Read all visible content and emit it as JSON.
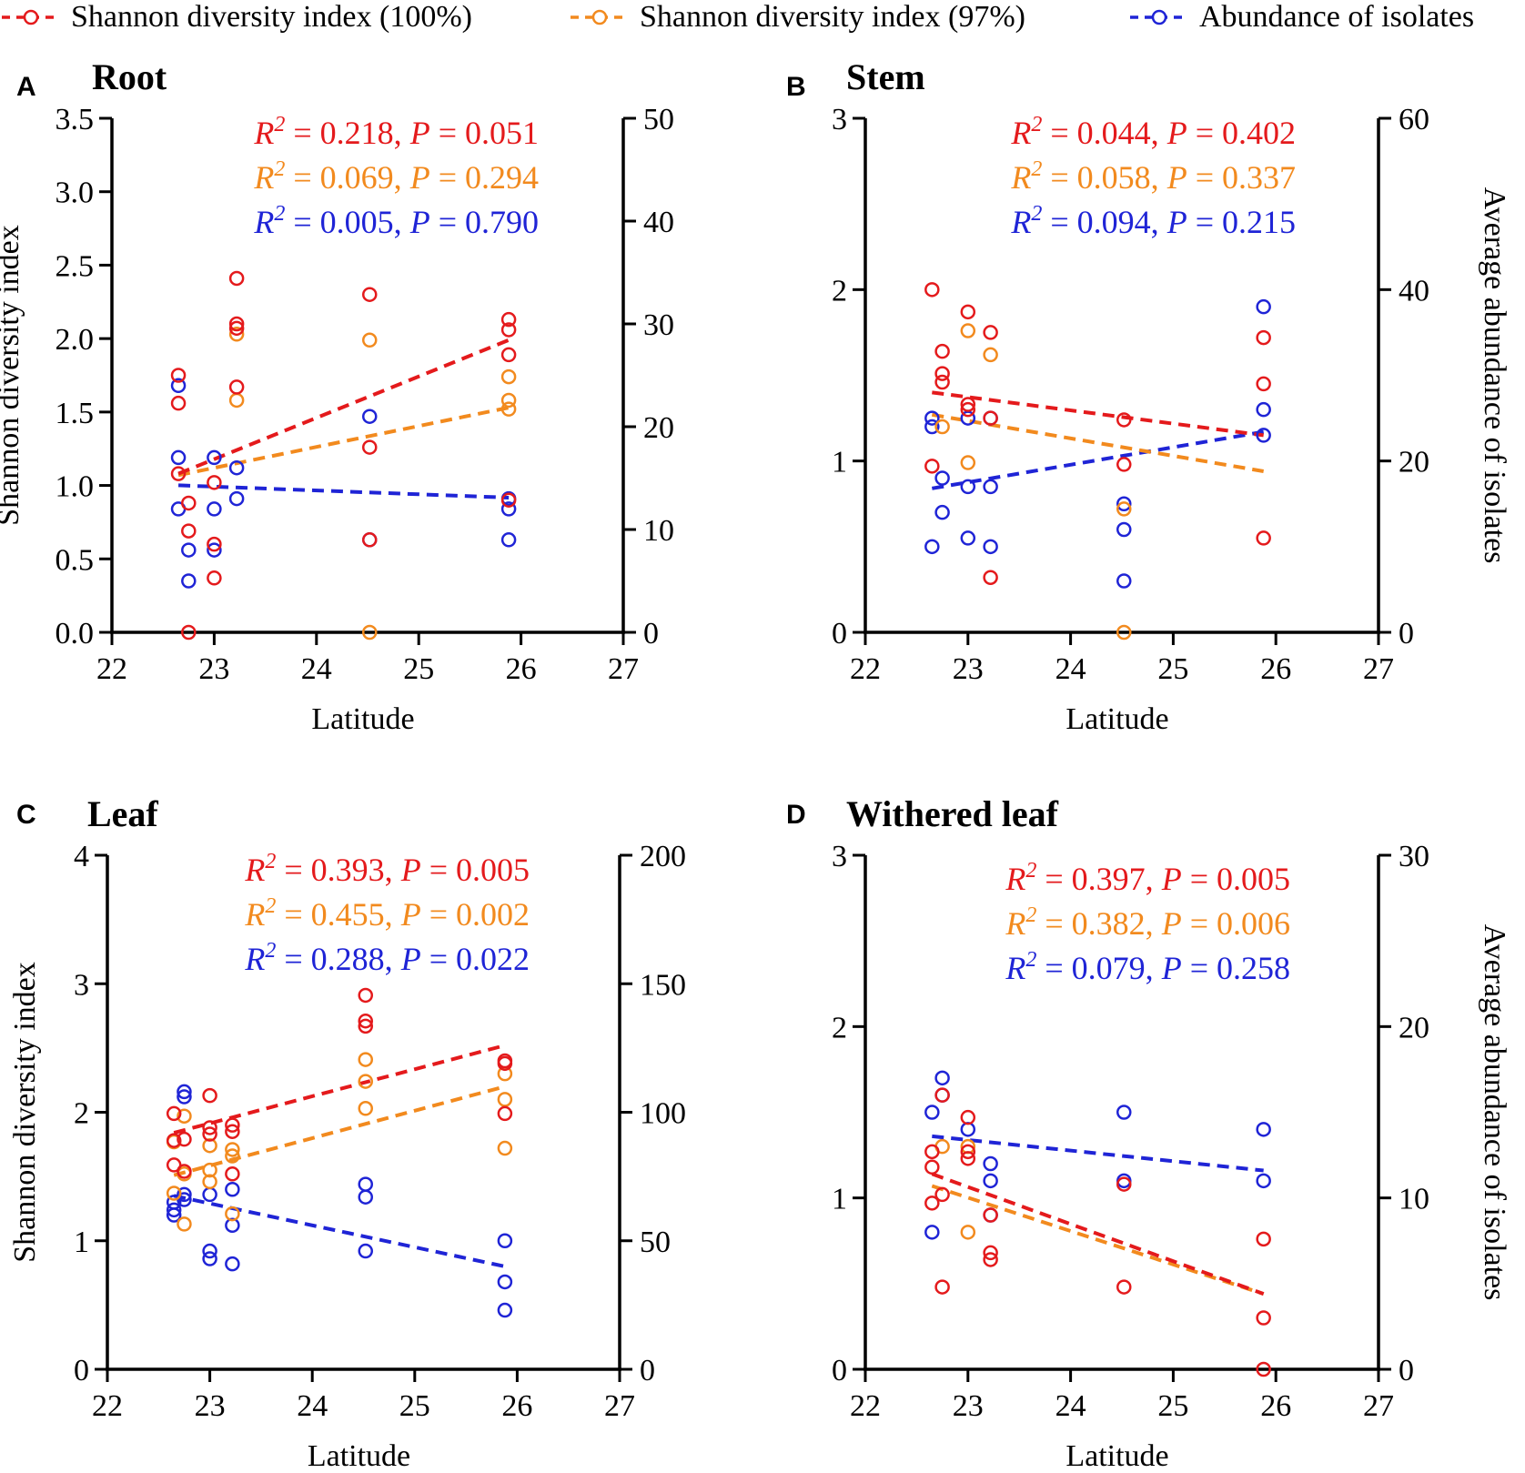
{
  "legend": {
    "items": [
      {
        "label": "Shannon diversity index (100%)",
        "color": "#e41a1c"
      },
      {
        "label": "Shannon diversity index (97%)",
        "color": "#f28a1e"
      },
      {
        "label": "Abundance of isolates",
        "color": "#1f24d6"
      }
    ]
  },
  "colors": {
    "red": "#e41a1c",
    "orange": "#f28a1e",
    "blue": "#1f24d6"
  },
  "chart_data": [
    {
      "panel": "A",
      "type": "scatter",
      "title": "Root",
      "xlabel": "Latitude",
      "ylabel": "Shannon diversity index",
      "y2label": "",
      "xlim": [
        22,
        27
      ],
      "xticks": [
        "22",
        "23",
        "24",
        "25",
        "26",
        "27"
      ],
      "ylim": [
        0,
        3.5
      ],
      "yticks": [
        "0.0",
        "0.5",
        "1.0",
        "1.5",
        "2.0",
        "2.5",
        "3.0",
        "3.5"
      ],
      "y2lim": [
        0,
        50
      ],
      "y2ticks": [
        "0",
        "10",
        "20",
        "30",
        "40",
        "50"
      ],
      "stats": [
        {
          "r2": "0.218",
          "p": "0.051",
          "color": "#e41a1c"
        },
        {
          "r2": "0.069",
          "p": "0.294",
          "color": "#f28a1e"
        },
        {
          "r2": "0.005",
          "p": "0.790",
          "color": "#1f24d6"
        }
      ],
      "series": [
        {
          "name": "Shannon diversity index (100%)",
          "color": "#e41a1c",
          "axis": "left",
          "points": [
            [
              22.65,
              1.75
            ],
            [
              22.65,
              1.56
            ],
            [
              22.65,
              1.08
            ],
            [
              22.75,
              0.88
            ],
            [
              22.75,
              0.69
            ],
            [
              22.75,
              0.0
            ],
            [
              23.0,
              1.02
            ],
            [
              23.0,
              0.6
            ],
            [
              23.0,
              0.37
            ],
            [
              23.22,
              2.41
            ],
            [
              23.22,
              2.1
            ],
            [
              23.22,
              2.07
            ],
            [
              23.22,
              1.67
            ],
            [
              24.52,
              2.3
            ],
            [
              24.52,
              1.26
            ],
            [
              24.52,
              0.63
            ],
            [
              25.88,
              2.13
            ],
            [
              25.88,
              2.06
            ],
            [
              25.88,
              1.89
            ],
            [
              25.88,
              0.9
            ]
          ],
          "trend": [
            [
              22.65,
              1.08
            ],
            [
              25.88,
              1.99
            ]
          ]
        },
        {
          "name": "Shannon diversity index (97%)",
          "color": "#f28a1e",
          "axis": "left",
          "points": [
            [
              23.22,
              2.03
            ],
            [
              23.22,
              1.58
            ],
            [
              24.52,
              1.99
            ],
            [
              24.52,
              0.0
            ],
            [
              25.88,
              1.74
            ],
            [
              25.88,
              1.58
            ],
            [
              25.88,
              1.52
            ]
          ],
          "trend": [
            [
              22.65,
              1.07
            ],
            [
              25.88,
              1.53
            ]
          ]
        },
        {
          "name": "Abundance of isolates",
          "color": "#1f24d6",
          "axis": "right",
          "points": [
            [
              22.65,
              24
            ],
            [
              22.65,
              17
            ],
            [
              22.65,
              12
            ],
            [
              22.75,
              8
            ],
            [
              22.75,
              5
            ],
            [
              23.0,
              17
            ],
            [
              23.0,
              12
            ],
            [
              23.0,
              8
            ],
            [
              23.22,
              16
            ],
            [
              23.22,
              13
            ],
            [
              24.52,
              21
            ],
            [
              24.52,
              9
            ],
            [
              25.88,
              13
            ],
            [
              25.88,
              12
            ],
            [
              25.88,
              9
            ]
          ],
          "trend": [
            [
              22.65,
              14.3
            ],
            [
              25.88,
              13.1
            ]
          ]
        }
      ]
    },
    {
      "panel": "B",
      "type": "scatter",
      "title": "Stem",
      "xlabel": "Latitude",
      "ylabel": "",
      "y2label": "Average abundance of isolates",
      "xlim": [
        22,
        27
      ],
      "xticks": [
        "22",
        "23",
        "24",
        "25",
        "26",
        "27"
      ],
      "ylim": [
        0,
        3
      ],
      "yticks": [
        "0",
        "1",
        "2",
        "3"
      ],
      "y2lim": [
        0,
        60
      ],
      "y2ticks": [
        "0",
        "20",
        "40",
        "60"
      ],
      "stats": [
        {
          "r2": "0.044",
          "p": "0.402",
          "color": "#e41a1c"
        },
        {
          "r2": "0.058",
          "p": "0.337",
          "color": "#f28a1e"
        },
        {
          "r2": "0.094",
          "p": "0.215",
          "color": "#1f24d6"
        }
      ],
      "series": [
        {
          "name": "Shannon diversity index (100%)",
          "color": "#e41a1c",
          "axis": "left",
          "points": [
            [
              22.65,
              2.0
            ],
            [
              22.65,
              0.97
            ],
            [
              22.75,
              1.64
            ],
            [
              22.75,
              1.51
            ],
            [
              22.75,
              1.46
            ],
            [
              23.0,
              1.87
            ],
            [
              23.0,
              1.33
            ],
            [
              23.0,
              1.3
            ],
            [
              23.22,
              1.75
            ],
            [
              23.22,
              1.25
            ],
            [
              23.22,
              0.32
            ],
            [
              24.52,
              1.24
            ],
            [
              24.52,
              0.98
            ],
            [
              25.88,
              1.72
            ],
            [
              25.88,
              1.45
            ],
            [
              25.88,
              0.55
            ]
          ],
          "trend": [
            [
              22.65,
              1.4
            ],
            [
              25.88,
              1.15
            ]
          ]
        },
        {
          "name": "Shannon diversity index (97%)",
          "color": "#f28a1e",
          "axis": "left",
          "points": [
            [
              22.75,
              1.2
            ],
            [
              23.0,
              1.76
            ],
            [
              23.0,
              0.99
            ],
            [
              23.22,
              1.62
            ],
            [
              24.52,
              0.72
            ],
            [
              24.52,
              0.0
            ]
          ],
          "trend": [
            [
              22.65,
              1.27
            ],
            [
              25.88,
              0.94
            ]
          ]
        },
        {
          "name": "Abundance of isolates",
          "color": "#1f24d6",
          "axis": "right",
          "points": [
            [
              22.65,
              25
            ],
            [
              22.65,
              24
            ],
            [
              22.65,
              10
            ],
            [
              22.75,
              18
            ],
            [
              22.75,
              14
            ],
            [
              23.0,
              25
            ],
            [
              23.0,
              17
            ],
            [
              23.0,
              11
            ],
            [
              23.22,
              25
            ],
            [
              23.22,
              17
            ],
            [
              23.22,
              10
            ],
            [
              24.52,
              15
            ],
            [
              24.52,
              12
            ],
            [
              24.52,
              6
            ],
            [
              25.88,
              38
            ],
            [
              25.88,
              26
            ],
            [
              25.88,
              23
            ]
          ],
          "trend": [
            [
              22.65,
              16.8
            ],
            [
              25.88,
              23.4
            ]
          ]
        }
      ]
    },
    {
      "panel": "C",
      "type": "scatter",
      "title": "Leaf",
      "xlabel": "Latitude",
      "ylabel": "Shannon diversity index",
      "y2label": "",
      "xlim": [
        22,
        27
      ],
      "xticks": [
        "22",
        "23",
        "24",
        "25",
        "26",
        "27"
      ],
      "ylim": [
        0,
        4
      ],
      "yticks": [
        "0",
        "1",
        "2",
        "3",
        "4"
      ],
      "y2lim": [
        0,
        200
      ],
      "y2ticks": [
        "0",
        "50",
        "100",
        "150",
        "200"
      ],
      "stats": [
        {
          "r2": "0.393",
          "p": "0.005",
          "color": "#e41a1c"
        },
        {
          "r2": "0.455",
          "p": "0.002",
          "color": "#f28a1e"
        },
        {
          "r2": "0.288",
          "p": "0.022",
          "color": "#1f24d6"
        }
      ],
      "series": [
        {
          "name": "Shannon diversity index (100%)",
          "color": "#e41a1c",
          "axis": "left",
          "points": [
            [
              22.65,
              1.99
            ],
            [
              22.65,
              1.78
            ],
            [
              22.65,
              1.59
            ],
            [
              22.75,
              1.79
            ],
            [
              22.75,
              1.54
            ],
            [
              23.0,
              2.13
            ],
            [
              23.0,
              1.88
            ],
            [
              23.0,
              1.83
            ],
            [
              23.22,
              1.9
            ],
            [
              23.22,
              1.85
            ],
            [
              23.22,
              1.52
            ],
            [
              24.52,
              2.91
            ],
            [
              24.52,
              2.71
            ],
            [
              24.52,
              2.67
            ],
            [
              25.88,
              2.4
            ],
            [
              25.88,
              2.38
            ],
            [
              25.88,
              1.99
            ]
          ],
          "trend": [
            [
              22.65,
              1.84
            ],
            [
              25.88,
              2.52
            ]
          ]
        },
        {
          "name": "Shannon diversity index (97%)",
          "color": "#f28a1e",
          "axis": "left",
          "points": [
            [
              22.65,
              1.77
            ],
            [
              22.65,
              1.37
            ],
            [
              22.75,
              1.97
            ],
            [
              22.75,
              1.52
            ],
            [
              22.75,
              1.13
            ],
            [
              23.0,
              1.74
            ],
            [
              23.0,
              1.55
            ],
            [
              23.0,
              1.46
            ],
            [
              23.22,
              1.71
            ],
            [
              23.22,
              1.66
            ],
            [
              23.22,
              1.21
            ],
            [
              24.52,
              2.41
            ],
            [
              24.52,
              2.24
            ],
            [
              24.52,
              2.03
            ],
            [
              25.88,
              2.3
            ],
            [
              25.88,
              2.1
            ],
            [
              25.88,
              1.72
            ]
          ],
          "trend": [
            [
              22.65,
              1.51
            ],
            [
              25.88,
              2.2
            ]
          ]
        },
        {
          "name": "Abundance of isolates",
          "color": "#1f24d6",
          "axis": "right",
          "points": [
            [
              22.65,
              65
            ],
            [
              22.65,
              62
            ],
            [
              22.65,
              60
            ],
            [
              22.75,
              108
            ],
            [
              22.75,
              106
            ],
            [
              22.75,
              68
            ],
            [
              22.75,
              66
            ],
            [
              23.0,
              68
            ],
            [
              23.0,
              46
            ],
            [
              23.0,
              43
            ],
            [
              23.22,
              70
            ],
            [
              23.22,
              56
            ],
            [
              23.22,
              41
            ],
            [
              24.52,
              72
            ],
            [
              24.52,
              67
            ],
            [
              24.52,
              46
            ],
            [
              25.88,
              50
            ],
            [
              25.88,
              34
            ],
            [
              25.88,
              23
            ]
          ],
          "trend": [
            [
              22.65,
              67.5
            ],
            [
              25.88,
              40
            ]
          ]
        }
      ]
    },
    {
      "panel": "D",
      "type": "scatter",
      "title": "Withered leaf",
      "xlabel": "Latitude",
      "ylabel": "",
      "y2label": "Average abundance of isolates",
      "xlim": [
        22,
        27
      ],
      "xticks": [
        "22",
        "23",
        "24",
        "25",
        "26",
        "27"
      ],
      "ylim": [
        0,
        3
      ],
      "yticks": [
        "0",
        "1",
        "2",
        "3"
      ],
      "y2lim": [
        0,
        30
      ],
      "y2ticks": [
        "0",
        "10",
        "20",
        "30"
      ],
      "stats": [
        {
          "r2": "0.397",
          "p": "0.005",
          "color": "#e41a1c"
        },
        {
          "r2": "0.382",
          "p": "0.006",
          "color": "#f28a1e"
        },
        {
          "r2": "0.079",
          "p": "0.258",
          "color": "#1f24d6"
        }
      ],
      "series": [
        {
          "name": "Shannon diversity index (100%)",
          "color": "#e41a1c",
          "axis": "left",
          "points": [
            [
              22.65,
              1.27
            ],
            [
              22.65,
              1.18
            ],
            [
              22.65,
              0.97
            ],
            [
              22.75,
              1.6
            ],
            [
              22.75,
              1.02
            ],
            [
              22.75,
              0.48
            ],
            [
              23.0,
              1.47
            ],
            [
              23.0,
              1.27
            ],
            [
              23.0,
              1.23
            ],
            [
              23.22,
              0.9
            ],
            [
              23.22,
              0.68
            ],
            [
              23.22,
              0.64
            ],
            [
              24.52,
              1.08
            ],
            [
              24.52,
              0.48
            ],
            [
              25.88,
              0.76
            ],
            [
              25.88,
              0.3
            ],
            [
              25.88,
              0.0
            ]
          ],
          "trend": [
            [
              22.65,
              1.14
            ],
            [
              25.88,
              0.44
            ]
          ]
        },
        {
          "name": "Shannon diversity index (97%)",
          "color": "#f28a1e",
          "axis": "left",
          "points": [
            [
              22.75,
              1.3
            ],
            [
              23.0,
              1.3
            ],
            [
              23.0,
              0.8
            ]
          ],
          "trend": [
            [
              22.65,
              1.07
            ],
            [
              25.88,
              0.44
            ]
          ]
        },
        {
          "name": "Abundance of isolates",
          "color": "#1f24d6",
          "axis": "right",
          "points": [
            [
              22.65,
              15
            ],
            [
              22.65,
              8
            ],
            [
              22.75,
              17
            ],
            [
              22.75,
              16
            ],
            [
              23.0,
              14
            ],
            [
              23.22,
              12
            ],
            [
              23.22,
              11
            ],
            [
              23.22,
              9
            ],
            [
              24.52,
              15
            ],
            [
              24.52,
              11
            ],
            [
              25.88,
              14
            ],
            [
              25.88,
              11
            ]
          ],
          "trend": [
            [
              22.65,
              13.6
            ],
            [
              25.88,
              11.6
            ]
          ]
        }
      ]
    }
  ]
}
